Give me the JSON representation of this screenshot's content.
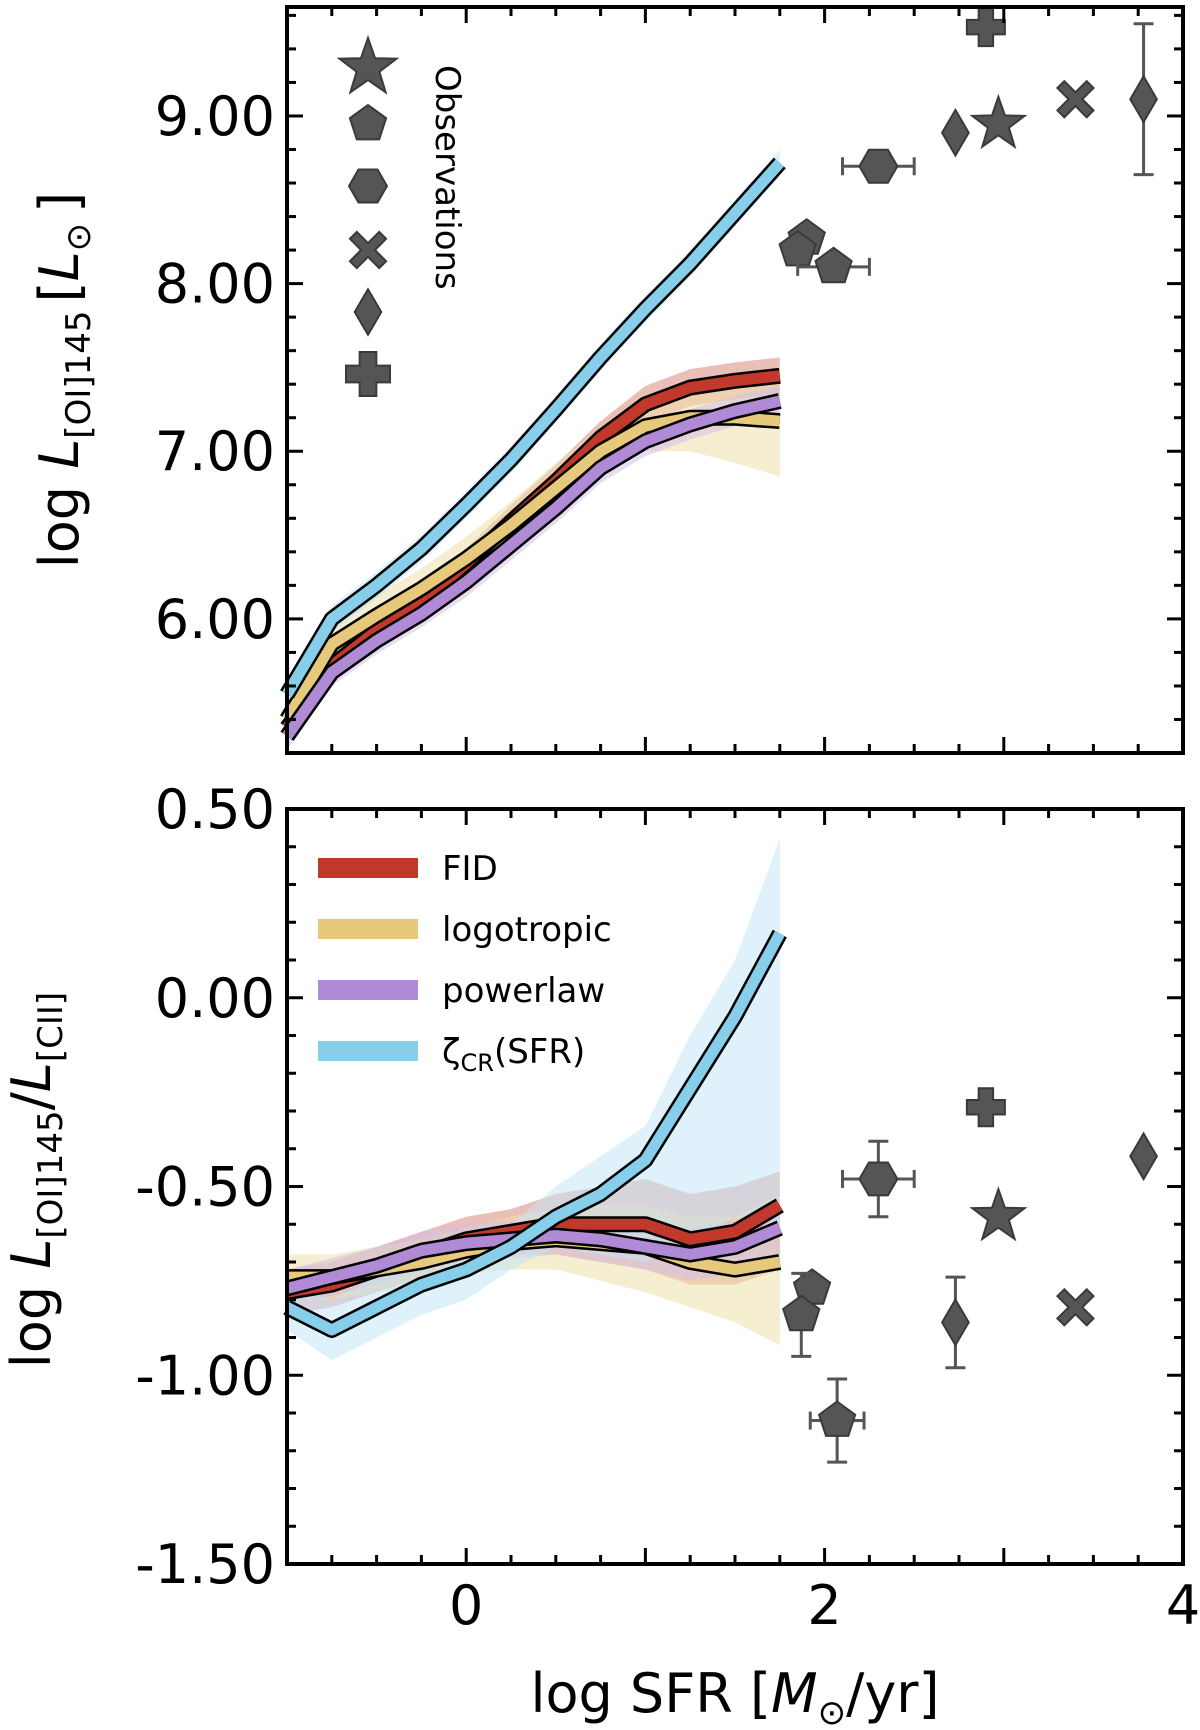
{
  "chart_data": [
    {
      "type": "line",
      "panel": "top",
      "ylabel": {
        "prefix": "log ",
        "L": "L",
        "sub": "[OI]145",
        "unit_open": "[",
        "unit_L": "L",
        "unit_sun": "⊙",
        "unit_close": "]"
      },
      "xlim": [
        -1.0,
        4.0
      ],
      "ylim": [
        5.2,
        9.65
      ],
      "yticks": [
        6.0,
        7.0,
        8.0,
        9.0
      ],
      "ytick_labels": [
        "6.00",
        "7.00",
        "8.00",
        "9.00"
      ],
      "x": [
        -1.0,
        -0.75,
        -0.5,
        -0.25,
        0.0,
        0.25,
        0.5,
        0.75,
        1.0,
        1.25,
        1.5,
        1.75
      ],
      "series": [
        {
          "name": "FID",
          "color": "#c0392b",
          "band_color": "#d98a7e",
          "values": [
            5.35,
            5.72,
            5.93,
            6.1,
            6.33,
            6.58,
            6.82,
            7.08,
            7.28,
            7.38,
            7.42,
            7.45
          ],
          "lower": [
            5.28,
            5.64,
            5.85,
            6.02,
            6.24,
            6.48,
            6.72,
            6.98,
            7.17,
            7.27,
            7.31,
            7.34
          ],
          "upper": [
            5.42,
            5.8,
            6.01,
            6.18,
            6.42,
            6.68,
            6.92,
            7.18,
            7.39,
            7.49,
            7.53,
            7.56
          ]
        },
        {
          "name": "logotropic",
          "color": "#e6c97a",
          "band_color": "#efe0ac",
          "values": [
            5.4,
            5.85,
            6.02,
            6.18,
            6.36,
            6.56,
            6.78,
            7.0,
            7.15,
            7.2,
            7.2,
            7.18
          ],
          "lower": [
            5.3,
            5.75,
            5.9,
            6.06,
            6.23,
            6.42,
            6.63,
            6.86,
            7.0,
            7.0,
            6.93,
            6.85
          ],
          "upper": [
            5.5,
            5.95,
            6.14,
            6.3,
            6.49,
            6.7,
            6.93,
            7.14,
            7.3,
            7.4,
            7.43,
            7.46
          ]
        },
        {
          "name": "powerlaw",
          "color": "#b08ad4",
          "band_color": "#d3bfe6",
          "values": [
            5.3,
            5.68,
            5.87,
            6.03,
            6.22,
            6.44,
            6.66,
            6.9,
            7.06,
            7.16,
            7.24,
            7.3
          ],
          "lower": [
            5.22,
            5.6,
            5.79,
            5.95,
            6.13,
            6.35,
            6.57,
            6.81,
            6.97,
            7.07,
            7.15,
            7.21
          ],
          "upper": [
            5.38,
            5.76,
            5.95,
            6.11,
            6.31,
            6.53,
            6.75,
            6.99,
            7.15,
            7.25,
            7.33,
            7.39
          ]
        },
        {
          "name": "ζCR(SFR)",
          "color": "#87ceeb",
          "band_color": "#c5e6f5",
          "values": [
            5.55,
            6.0,
            6.2,
            6.42,
            6.68,
            6.95,
            7.25,
            7.56,
            7.85,
            8.12,
            8.42,
            8.72
          ],
          "lower": [
            5.47,
            5.92,
            6.12,
            6.34,
            6.6,
            6.87,
            7.17,
            7.48,
            7.77,
            8.04,
            8.34,
            8.64
          ],
          "upper": [
            5.63,
            6.08,
            6.28,
            6.5,
            6.76,
            7.03,
            7.33,
            7.64,
            7.93,
            8.2,
            8.5,
            8.8
          ]
        }
      ],
      "observations": [
        {
          "marker": "pentagon",
          "x": 1.9,
          "y": 8.27
        },
        {
          "marker": "pentagon",
          "x": 1.85,
          "y": 8.2
        },
        {
          "marker": "pentagon",
          "x": 2.05,
          "y": 8.1,
          "xerr": 0.2
        },
        {
          "marker": "hexagon",
          "x": 2.3,
          "y": 8.7,
          "xerr": 0.2
        },
        {
          "marker": "diamond",
          "x": 2.73,
          "y": 8.9
        },
        {
          "marker": "star",
          "x": 2.97,
          "y": 8.95
        },
        {
          "marker": "plus",
          "x": 2.9,
          "y": 9.53
        },
        {
          "marker": "x",
          "x": 3.4,
          "y": 9.1
        },
        {
          "marker": "diamond",
          "x": 3.78,
          "y": 9.1,
          "yerr": 0.45
        }
      ],
      "observations_label": "Observations"
    },
    {
      "type": "line",
      "panel": "bottom",
      "xlabel": {
        "prefix": "log SFR [",
        "M": "M",
        "sun": "⊙",
        "suffix": "/yr]"
      },
      "ylabel": {
        "prefix": "log ",
        "L": "L",
        "sub1": "[OI]145",
        "slash": "/",
        "L2": "L",
        "sub2": "[CII]"
      },
      "xlim": [
        -1.0,
        4.0
      ],
      "ylim": [
        -1.5,
        0.5
      ],
      "xticks": [
        0,
        2,
        4
      ],
      "xtick_labels": [
        "0",
        "2",
        "4"
      ],
      "yticks": [
        -1.5,
        -1.0,
        -0.5,
        0.0,
        0.5
      ],
      "ytick_labels": [
        "-1.50",
        "-1.00",
        "-0.50",
        "0.00",
        "0.50"
      ],
      "x": [
        -1.0,
        -0.75,
        -0.5,
        -0.25,
        0.0,
        0.25,
        0.5,
        0.75,
        1.0,
        1.25,
        1.5,
        1.75
      ],
      "series": [
        {
          "name": "FID",
          "color": "#c0392b",
          "band_color": "#d98a7e",
          "values": [
            -0.78,
            -0.76,
            -0.72,
            -0.68,
            -0.64,
            -0.62,
            -0.6,
            -0.6,
            -0.6,
            -0.64,
            -0.62,
            -0.55
          ],
          "lower": [
            -0.84,
            -0.82,
            -0.78,
            -0.74,
            -0.7,
            -0.68,
            -0.68,
            -0.7,
            -0.72,
            -0.76,
            -0.76,
            -0.72
          ],
          "upper": [
            -0.72,
            -0.7,
            -0.66,
            -0.62,
            -0.58,
            -0.56,
            -0.52,
            -0.5,
            -0.48,
            -0.52,
            -0.5,
            -0.46
          ]
        },
        {
          "name": "logotropic",
          "color": "#e6c97a",
          "band_color": "#efe0ac",
          "values": [
            -0.74,
            -0.74,
            -0.72,
            -0.7,
            -0.67,
            -0.65,
            -0.64,
            -0.65,
            -0.66,
            -0.7,
            -0.72,
            -0.7
          ],
          "lower": [
            -0.8,
            -0.8,
            -0.78,
            -0.76,
            -0.73,
            -0.72,
            -0.72,
            -0.75,
            -0.78,
            -0.82,
            -0.86,
            -0.92
          ],
          "upper": [
            -0.68,
            -0.68,
            -0.66,
            -0.64,
            -0.61,
            -0.58,
            -0.56,
            -0.55,
            -0.55,
            -0.58,
            -0.58,
            -0.52
          ]
        },
        {
          "name": "powerlaw",
          "color": "#b08ad4",
          "band_color": "#d3bfe6",
          "values": [
            -0.77,
            -0.74,
            -0.71,
            -0.67,
            -0.65,
            -0.64,
            -0.63,
            -0.64,
            -0.66,
            -0.68,
            -0.66,
            -0.61
          ],
          "lower": [
            -0.82,
            -0.79,
            -0.76,
            -0.72,
            -0.7,
            -0.69,
            -0.68,
            -0.7,
            -0.72,
            -0.75,
            -0.73,
            -0.68
          ],
          "upper": [
            -0.72,
            -0.69,
            -0.66,
            -0.62,
            -0.6,
            -0.59,
            -0.58,
            -0.58,
            -0.6,
            -0.61,
            -0.59,
            -0.54
          ]
        },
        {
          "name": "ζCR(SFR)",
          "color": "#87ceeb",
          "band_color": "#c5e6f5",
          "values": [
            -0.82,
            -0.88,
            -0.82,
            -0.76,
            -0.72,
            -0.66,
            -0.58,
            -0.52,
            -0.43,
            -0.24,
            -0.05,
            0.17
          ],
          "lower": [
            -0.88,
            -0.96,
            -0.9,
            -0.84,
            -0.8,
            -0.72,
            -0.66,
            -0.68,
            -0.7,
            -0.65,
            -0.58,
            -0.6
          ],
          "upper": [
            -0.76,
            -0.8,
            -0.74,
            -0.68,
            -0.64,
            -0.6,
            -0.5,
            -0.42,
            -0.34,
            -0.1,
            0.1,
            0.42
          ]
        }
      ],
      "observations": [
        {
          "marker": "pentagon",
          "x": 1.93,
          "y": -0.77
        },
        {
          "marker": "pentagon",
          "x": 1.87,
          "y": -0.84,
          "yerr": 0.11
        },
        {
          "marker": "pentagon",
          "x": 2.07,
          "y": -1.12,
          "xerr": 0.15,
          "yerr": 0.11
        },
        {
          "marker": "hexagon",
          "x": 2.3,
          "y": -0.48,
          "xerr": 0.2,
          "yerr": 0.1
        },
        {
          "marker": "diamond",
          "x": 2.73,
          "y": -0.86,
          "yerr": 0.12
        },
        {
          "marker": "plus",
          "x": 2.9,
          "y": -0.29
        },
        {
          "marker": "star",
          "x": 2.97,
          "y": -0.58
        },
        {
          "marker": "x",
          "x": 3.4,
          "y": -0.82
        },
        {
          "marker": "diamond",
          "x": 3.78,
          "y": -0.42
        }
      ],
      "legend": {
        "location": "top-left",
        "entries": [
          {
            "label": "FID",
            "color": "#c0392b"
          },
          {
            "label": "logotropic",
            "color": "#e6c97a"
          },
          {
            "label": "powerlaw",
            "color": "#b08ad4"
          },
          {
            "label_main": "ζ",
            "label_sub": "CR",
            "label_tail": "(SFR)",
            "color": "#87ceeb"
          }
        ]
      }
    }
  ],
  "marker_color": "#555555"
}
